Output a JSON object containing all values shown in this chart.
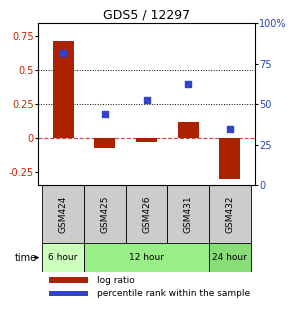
{
  "title": "GDS5 / 12297",
  "samples": [
    "GSM424",
    "GSM425",
    "GSM426",
    "GSM431",
    "GSM432"
  ],
  "log_ratio": [
    0.72,
    -0.07,
    -0.03,
    0.12,
    -0.3
  ],
  "percentile_rank": [
    0.63,
    0.18,
    0.28,
    0.4,
    0.07
  ],
  "time_groups": [
    {
      "label": "6 hour",
      "samples": [
        0
      ],
      "color": "#ccffbb"
    },
    {
      "label": "12 hour",
      "samples": [
        1,
        2,
        3
      ],
      "color": "#99ee88"
    },
    {
      "label": "24 hour",
      "samples": [
        4
      ],
      "color": "#88dd77"
    }
  ],
  "bar_color": "#aa2200",
  "dot_color": "#3344cc",
  "ylim_left": [
    -0.35,
    0.85
  ],
  "ylim_right": [
    0,
    100
  ],
  "yticks_left": [
    -0.25,
    0,
    0.25,
    0.5,
    0.75
  ],
  "yticks_right": [
    0,
    25,
    50,
    75,
    100
  ],
  "hline_zero_color": "#cc4444",
  "hline_dotted_values": [
    0.25,
    0.5
  ],
  "label_color_left": "#cc2200",
  "label_color_right": "#2244bb",
  "gsm_color": "#cccccc",
  "bar_width": 0.5,
  "legend_bar_label": "log ratio",
  "legend_dot_label": "percentile rank within the sample"
}
